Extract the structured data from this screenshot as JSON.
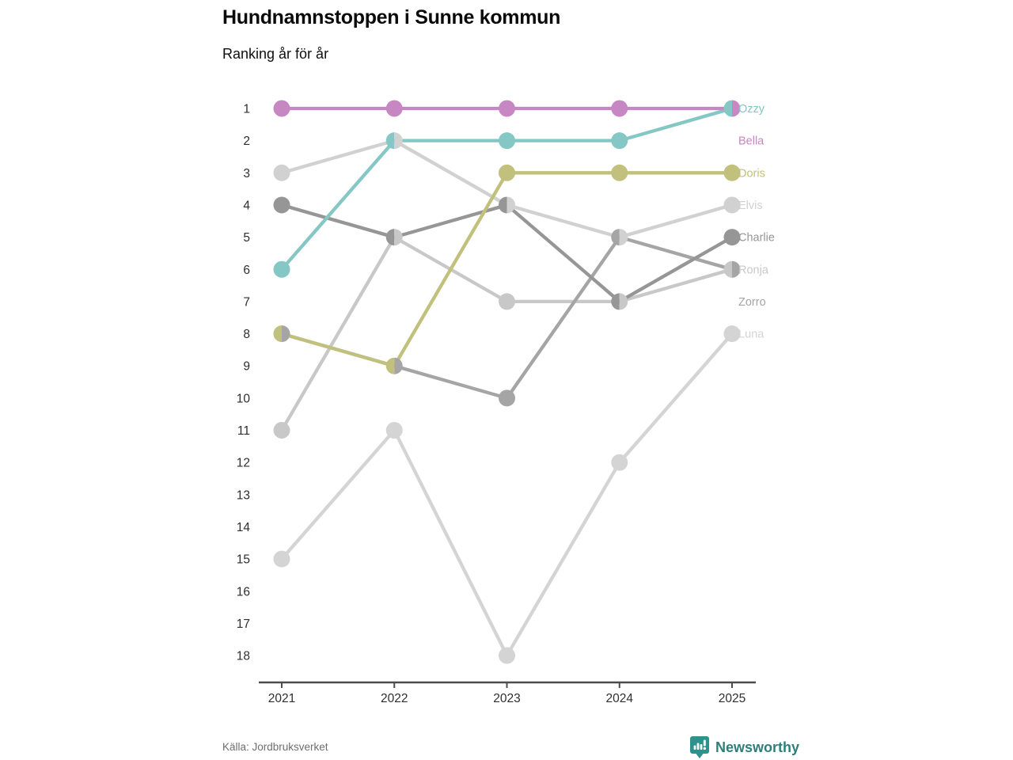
{
  "title": "Hundnamnstoppen i Sunne kommun",
  "subtitle": "Ranking år för år",
  "footer": {
    "source": "Källa: Jordbruksverket",
    "brand": "Newsworthy"
  },
  "chart_data": {
    "type": "line",
    "subtype": "bump-ranking-chart",
    "x": [
      "2021",
      "2022",
      "2023",
      "2024",
      "2025"
    ],
    "y_ticks": [
      1,
      2,
      3,
      4,
      5,
      6,
      7,
      8,
      9,
      10,
      11,
      12,
      13,
      14,
      15,
      16,
      17,
      18
    ],
    "ylim": [
      1,
      18
    ],
    "y_inverted": true,
    "grid": false,
    "legend_position": "right-edge-labels",
    "series": [
      {
        "name": "Ozzy",
        "color": "#84c7c4",
        "values": [
          6,
          2,
          2,
          2,
          1
        ],
        "label_row": 1
      },
      {
        "name": "Bella",
        "color": "#c687c3",
        "values": [
          1,
          1,
          1,
          1,
          1
        ],
        "label_row": 2
      },
      {
        "name": "Doris",
        "color": "#c1c07d",
        "values": [
          8,
          9,
          3,
          3,
          3
        ],
        "label_row": 3
      },
      {
        "name": "Elvis",
        "color": "#d1d1d1",
        "values": [
          3,
          2,
          4,
          5,
          4
        ],
        "label_row": 4
      },
      {
        "name": "Charlie",
        "color": "#969696",
        "values": [
          4,
          5,
          4,
          7,
          5
        ],
        "label_row": 5
      },
      {
        "name": "Ronja",
        "color": "#c8c8c8",
        "values": [
          11,
          5,
          7,
          7,
          6
        ],
        "label_row": 6
      },
      {
        "name": "Zorro",
        "color": "#a5a5a5",
        "values": [
          8,
          9,
          10,
          5,
          6
        ],
        "label_row": 7
      },
      {
        "name": "Luna",
        "color": "#d4d4d4",
        "values": [
          15,
          11,
          18,
          12,
          8
        ],
        "label_row": 8
      }
    ],
    "draw_order": [
      "Luna",
      "Elvis",
      "Ronja",
      "Zorro",
      "Charlie",
      "Doris",
      "Ozzy",
      "Bella"
    ],
    "shared_points": [
      {
        "x": "2021",
        "rank": 8,
        "left": "Doris",
        "right": "Zorro"
      },
      {
        "x": "2022",
        "rank": 2,
        "left": "Ozzy",
        "right": "Elvis"
      },
      {
        "x": "2022",
        "rank": 5,
        "left": "Charlie",
        "right": "Ronja"
      },
      {
        "x": "2022",
        "rank": 9,
        "left": "Doris",
        "right": "Zorro"
      },
      {
        "x": "2023",
        "rank": 4,
        "left": "Charlie",
        "right": "Elvis"
      },
      {
        "x": "2024",
        "rank": 5,
        "left": "Zorro",
        "right": "Elvis"
      },
      {
        "x": "2024",
        "rank": 7,
        "left": "Charlie",
        "right": "Ronja"
      },
      {
        "x": "2025",
        "rank": 1,
        "left": "Ozzy",
        "right": "Bella"
      },
      {
        "x": "2025",
        "rank": 6,
        "left": "Ronja",
        "right": "Zorro"
      }
    ],
    "brand_colors": {
      "logo_teal": "#2d918c",
      "brand_text": "#2e7e7c",
      "axis": "#4c4c4c",
      "tick_text": "#2e2e2e"
    }
  }
}
